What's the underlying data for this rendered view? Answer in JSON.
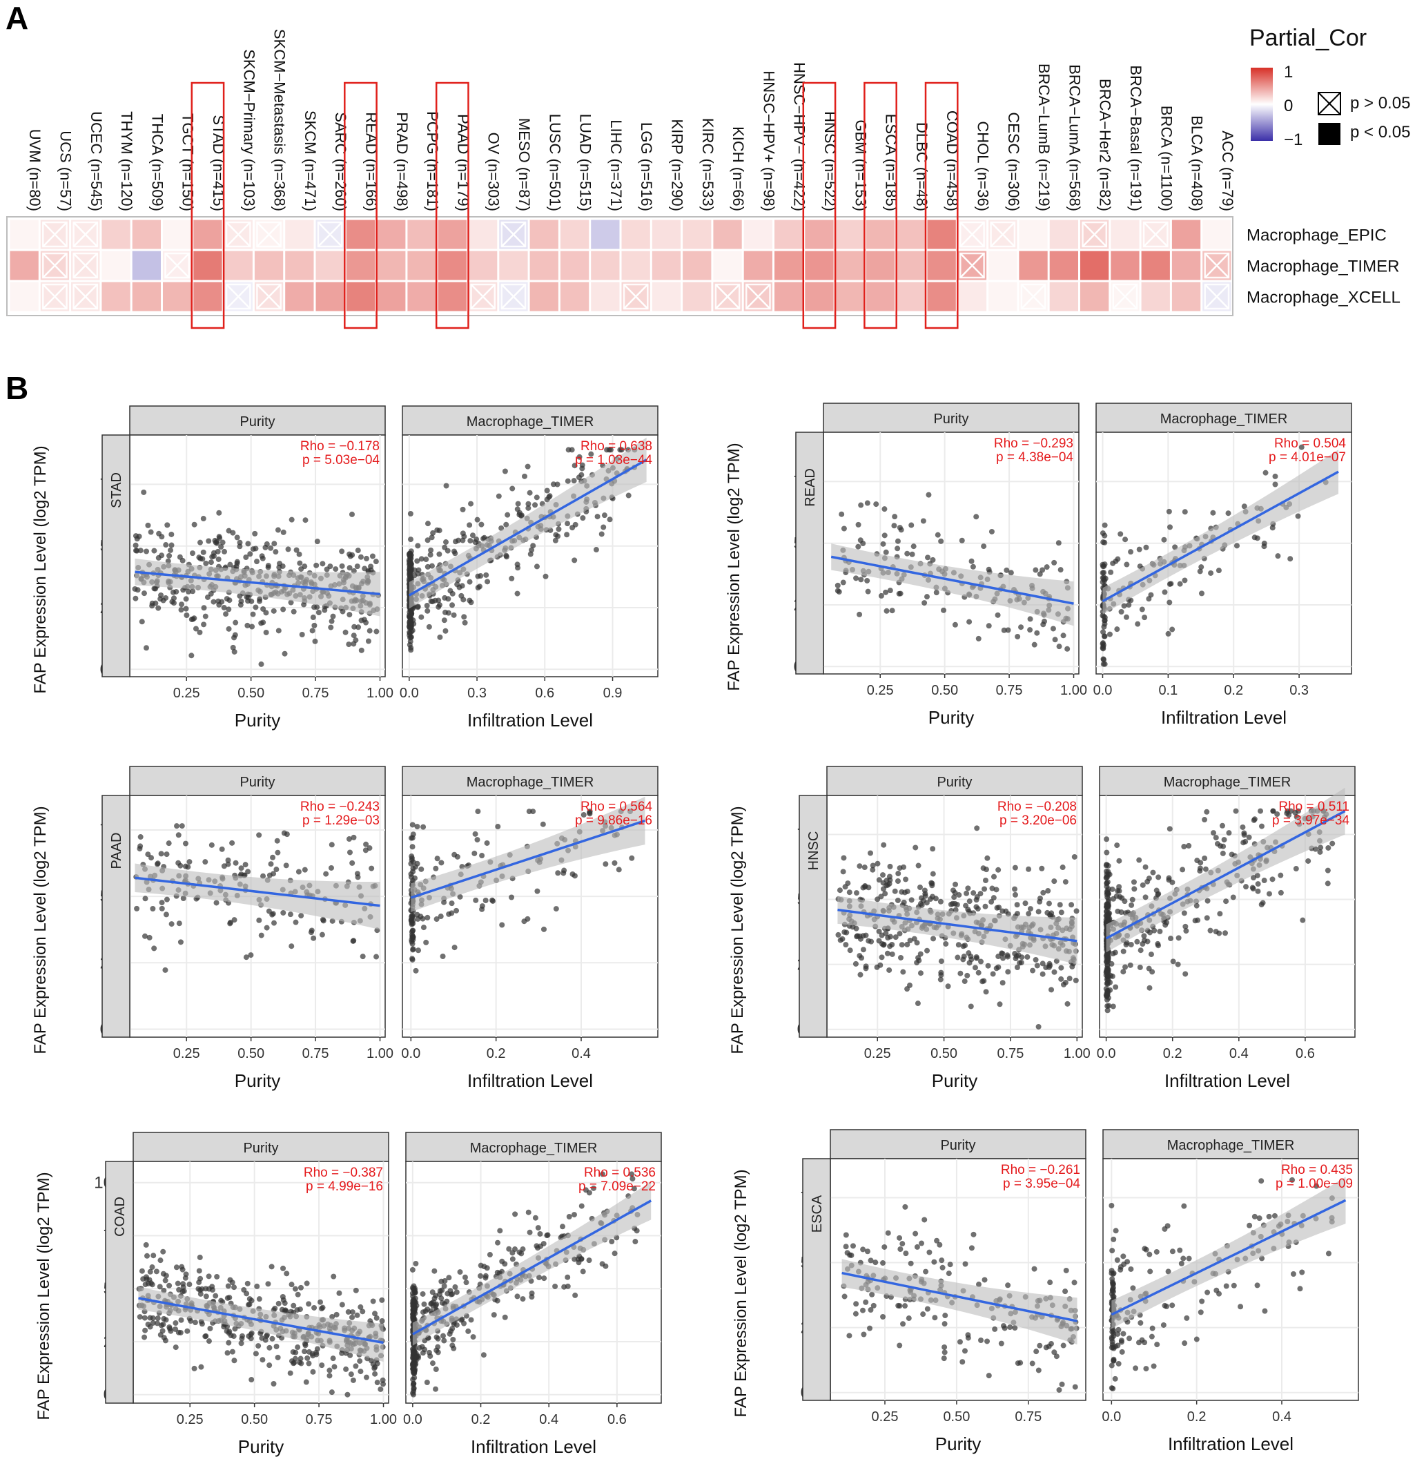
{
  "panel_labels": {
    "a": "A",
    "b": "B"
  },
  "colors": {
    "pos": "#d73027",
    "neg": "#3b2fa8",
    "fit_line": "#3366e0",
    "ci_band": "#bdbdbd",
    "points": "#333333",
    "stat_text": "#e41a1c",
    "strip_bg": "#d9d9d9",
    "highlight_box": "#e0201b",
    "grid": "#ebebeb"
  },
  "heatmap": {
    "legend_title": "Partial_Cor",
    "legend_ticks": [
      "1",
      "0",
      "−1"
    ],
    "legend_ns": "p > 0.05",
    "legend_sig": "p < 0.05",
    "rows": [
      "Macrophage_EPIC",
      "Macrophage_TIMER",
      "Macrophage_XCELL"
    ],
    "columns": [
      "UVM (n=80)",
      "UCS (n=57)",
      "UCEC (n=545)",
      "THYM (n=120)",
      "THCA (n=509)",
      "TGCT (n=150)",
      "STAD (n=415)",
      "SKCM−Primary (n=103)",
      "SKCM−Metastasis (n=368)",
      "SKCM (n=471)",
      "SARC (n=260)",
      "READ (n=166)",
      "PRAD (n=498)",
      "PCPG (n=181)",
      "PAAD (n=179)",
      "OV (n=303)",
      "MESO (n=87)",
      "LUSC (n=501)",
      "LUAD (n=515)",
      "LIHC (n=371)",
      "LGG (n=516)",
      "KIRP (n=290)",
      "KIRC (n=533)",
      "KICH (n=66)",
      "HNSC−HPV+ (n=98)",
      "HNSC−HPV− (n=422)",
      "HNSC (n=522)",
      "GBM (n=153)",
      "ESCA (n=185)",
      "DLBC (n=48)",
      "COAD (n=458)",
      "CHOL (n=36)",
      "CESC (n=306)",
      "BRCA−LumB (n=219)",
      "BRCA−LumA (n=568)",
      "BRCA−Her2 (n=82)",
      "BRCA−Basal (n=191)",
      "BRCA (n=1100)",
      "BLCA (n=408)",
      "ACC (n=79)"
    ],
    "highlighted": [
      "STAD (n=415)",
      "READ (n=166)",
      "PAAD (n=179)",
      "HNSC (n=522)",
      "ESCA (n=185)",
      "COAD (n=458)"
    ],
    "values": [
      [
        0.05,
        0.12,
        0.1,
        0.22,
        0.3,
        0.05,
        0.45,
        0.1,
        0.06,
        0.1,
        -0.1,
        0.55,
        0.4,
        0.32,
        0.45,
        0.12,
        -0.15,
        0.3,
        0.2,
        -0.25,
        0.18,
        0.15,
        0.18,
        0.32,
        0.08,
        0.25,
        0.4,
        0.22,
        0.35,
        0.3,
        0.6,
        0.08,
        0.1,
        0.05,
        0.15,
        0.2,
        0.1,
        0.1,
        0.45,
        0.05
      ],
      [
        0.4,
        0.2,
        0.12,
        0.05,
        -0.3,
        0.08,
        0.64,
        0.25,
        0.3,
        0.3,
        0.22,
        0.5,
        0.35,
        0.35,
        0.56,
        0.25,
        0.2,
        0.3,
        0.28,
        0.22,
        0.18,
        0.25,
        0.3,
        0.05,
        0.4,
        0.48,
        0.51,
        0.35,
        0.44,
        0.32,
        0.54,
        0.4,
        0.05,
        0.5,
        0.55,
        0.7,
        0.52,
        0.6,
        0.4,
        0.3
      ],
      [
        0.05,
        0.12,
        0.12,
        0.3,
        0.35,
        0.35,
        0.55,
        -0.08,
        0.15,
        0.4,
        0.45,
        0.6,
        0.45,
        0.4,
        0.55,
        0.15,
        -0.1,
        0.35,
        0.3,
        0.12,
        0.2,
        0.1,
        0.2,
        0.2,
        0.25,
        0.4,
        0.45,
        0.35,
        0.4,
        0.25,
        0.55,
        0.1,
        0.05,
        0.05,
        0.2,
        0.35,
        0.05,
        0.2,
        0.3,
        -0.1
      ]
    ],
    "nonsignificant": [
      [
        false,
        true,
        true,
        false,
        false,
        false,
        false,
        true,
        true,
        false,
        true,
        false,
        false,
        false,
        false,
        false,
        true,
        false,
        false,
        false,
        false,
        false,
        false,
        false,
        false,
        false,
        false,
        false,
        false,
        false,
        false,
        true,
        true,
        false,
        false,
        true,
        false,
        true,
        false,
        false
      ],
      [
        false,
        true,
        true,
        false,
        false,
        true,
        false,
        false,
        false,
        false,
        false,
        false,
        false,
        false,
        false,
        false,
        false,
        false,
        false,
        false,
        false,
        false,
        false,
        false,
        false,
        false,
        false,
        false,
        false,
        false,
        false,
        true,
        false,
        false,
        false,
        false,
        false,
        false,
        false,
        true
      ],
      [
        false,
        true,
        true,
        false,
        false,
        false,
        false,
        true,
        true,
        false,
        false,
        false,
        false,
        false,
        false,
        true,
        true,
        false,
        false,
        false,
        true,
        false,
        false,
        true,
        true,
        false,
        false,
        false,
        false,
        false,
        false,
        false,
        false,
        true,
        false,
        false,
        true,
        false,
        false,
        true
      ]
    ]
  },
  "scatter_common": {
    "ylabel": "FAP Expression Level (log2 TPM)",
    "xlabel_purity": "Purity",
    "xlabel_infil": "Infiltration Level",
    "strip_purity": "Purity",
    "strip_infil": "Macrophage_TIMER"
  },
  "chart_data": [
    {
      "type": "scatter",
      "cancer": "STAD",
      "n": 415,
      "ylim": [
        -0.3,
        9.5
      ],
      "yticks": [
        "0.0",
        "2.5",
        "5.0",
        "7.5"
      ],
      "purity": {
        "rho": "Rho = −0.178",
        "p": "p = 5.03e−04",
        "xlim": [
          0.03,
          1.02
        ],
        "xticks": [
          "0.25",
          "0.50",
          "0.75",
          "1.00"
        ],
        "fit": [
          [
            0.05,
            3.95
          ],
          [
            1.0,
            3.05
          ]
        ]
      },
      "infil": {
        "rho": "Rho = 0.638",
        "p": "p = 1.03e−44",
        "xlim": [
          -0.03,
          1.1
        ],
        "xticks": [
          "0.0",
          "0.3",
          "0.6",
          "0.9"
        ],
        "fit": [
          [
            0.0,
            3.0
          ],
          [
            1.05,
            8.5
          ]
        ]
      }
    },
    {
      "type": "scatter",
      "cancer": "READ",
      "n": 166,
      "ylim": [
        -0.3,
        9.5
      ],
      "yticks": [
        "0.0",
        "2.5",
        "5.0",
        "7.5"
      ],
      "purity": {
        "rho": "Rho = −0.293",
        "p": "p = 4.38e−04",
        "xlim": [
          0.03,
          1.02
        ],
        "xticks": [
          "0.25",
          "0.50",
          "0.75",
          "1.00"
        ],
        "fit": [
          [
            0.06,
            4.45
          ],
          [
            1.0,
            2.55
          ]
        ]
      },
      "infil": {
        "rho": "Rho = 0.504",
        "p": "p = 4.01e−07",
        "xlim": [
          -0.01,
          0.38
        ],
        "xticks": [
          "0.0",
          "0.1",
          "0.2",
          "0.3"
        ],
        "fit": [
          [
            0.0,
            2.65
          ],
          [
            0.36,
            7.9
          ]
        ]
      }
    },
    {
      "type": "scatter",
      "cancer": "PAAD",
      "n": 179,
      "ylim": [
        -0.3,
        8.8
      ],
      "yticks": [
        "0.0",
        "2.5",
        "5.0",
        "7.5"
      ],
      "purity": {
        "rho": "Rho = −0.243",
        "p": "p = 1.29e−03",
        "xlim": [
          0.03,
          1.02
        ],
        "xticks": [
          "0.25",
          "0.50",
          "0.75",
          "1.00"
        ],
        "fit": [
          [
            0.05,
            5.7
          ],
          [
            1.0,
            4.65
          ]
        ]
      },
      "infil": {
        "rho": "Rho = 0.564",
        "p": "p = 9.86e−16",
        "xlim": [
          -0.02,
          0.58
        ],
        "xticks": [
          "0.0",
          "0.2",
          "0.4"
        ],
        "fit": [
          [
            0.0,
            4.95
          ],
          [
            0.55,
            7.85
          ]
        ]
      }
    },
    {
      "type": "scatter",
      "cancer": "HNSC",
      "n": 522,
      "ylim": [
        -0.3,
        9.0
      ],
      "yticks": [
        "0.0",
        "2.5",
        "5.0",
        "7.5"
      ],
      "purity": {
        "rho": "Rho = −0.208",
        "p": "p = 3.20e−06",
        "xlim": [
          0.06,
          1.02
        ],
        "xticks": [
          "0.25",
          "0.50",
          "0.75",
          "1.00"
        ],
        "fit": [
          [
            0.1,
            4.6
          ],
          [
            1.0,
            3.4
          ]
        ]
      },
      "infil": {
        "rho": "Rho = 0.511",
        "p": "p = 3.97e−34",
        "xlim": [
          -0.02,
          0.75
        ],
        "xticks": [
          "0.0",
          "0.2",
          "0.4",
          "0.6"
        ],
        "fit": [
          [
            0.0,
            3.5
          ],
          [
            0.72,
            8.4
          ]
        ]
      }
    },
    {
      "type": "scatter",
      "cancer": "COAD",
      "n": 458,
      "ylim": [
        -0.4,
        11.0
      ],
      "yticks": [
        "0.0",
        "2.5",
        "5.0",
        "7.5",
        "10.0"
      ],
      "purity": {
        "rho": "Rho = −0.387",
        "p": "p = 4.99e−16",
        "xlim": [
          0.03,
          1.02
        ],
        "xticks": [
          "0.25",
          "0.50",
          "0.75",
          "1.00"
        ],
        "fit": [
          [
            0.05,
            4.55
          ],
          [
            1.0,
            2.45
          ]
        ]
      },
      "infil": {
        "rho": "Rho = 0.536",
        "p": "p = 7.09e−22",
        "xlim": [
          -0.02,
          0.73
        ],
        "xticks": [
          "0.0",
          "0.2",
          "0.4",
          "0.6"
        ],
        "fit": [
          [
            0.0,
            2.85
          ],
          [
            0.7,
            9.15
          ]
        ]
      }
    },
    {
      "type": "scatter",
      "cancer": "ESCA",
      "n": 185,
      "ylim": [
        -0.3,
        9.0
      ],
      "yticks": [
        "0.0",
        "2.5",
        "5.0",
        "7.5"
      ],
      "purity": {
        "rho": "Rho = −0.261",
        "p": "p = 3.95e−04",
        "xlim": [
          0.06,
          0.95
        ],
        "xticks": [
          "0.25",
          "0.50",
          "0.75"
        ],
        "fit": [
          [
            0.1,
            4.6
          ],
          [
            0.92,
            2.75
          ]
        ]
      },
      "infil": {
        "rho": "Rho = 0.435",
        "p": "p = 1.00e−09",
        "xlim": [
          -0.02,
          0.58
        ],
        "xticks": [
          "0.0",
          "0.2",
          "0.4"
        ],
        "fit": [
          [
            0.0,
            3.0
          ],
          [
            0.55,
            7.4
          ]
        ]
      }
    }
  ]
}
